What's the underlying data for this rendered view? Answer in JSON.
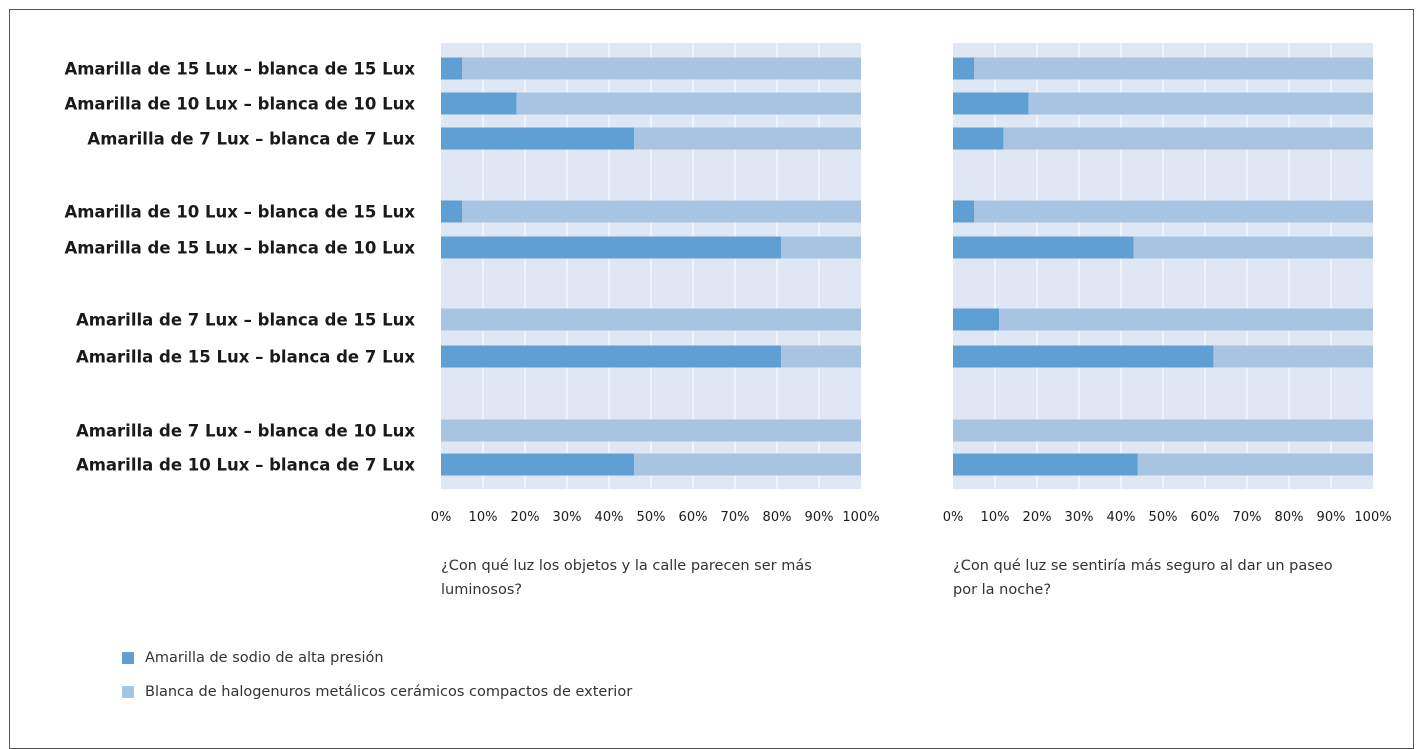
{
  "colors": {
    "yellow": "#5f9fd4",
    "white": "#a8c4e3",
    "plot_bg": "#dfe7f4",
    "grid": "#ffffff"
  },
  "chart_data": [
    {
      "type": "bar",
      "orientation": "horizontal-stacked-100",
      "title": "¿Con qué luz los objetos y la calle parecen ser más luminosos?",
      "categories": [
        "Amarilla de 15 Lux – blanca de 15 Lux",
        "Amarilla de 10 Lux – blanca de 10 Lux",
        "Amarilla de 7 Lux – blanca de 7 Lux",
        "Amarilla de 10 Lux – blanca de 15 Lux",
        "Amarilla de 15 Lux – blanca de 10 Lux",
        "Amarilla de 7 Lux – blanca de 15 Lux",
        "Amarilla de 15 Lux – blanca de 7 Lux",
        "Amarilla de 7 Lux – blanca de 10 Lux",
        "Amarilla de 10 Lux – blanca de 7 Lux"
      ],
      "series": [
        {
          "name": "Amarilla de sodio de alta presión",
          "values": [
            5,
            18,
            46,
            5,
            81,
            0,
            81,
            0,
            46
          ]
        },
        {
          "name": "Blanca de halogenuros metálicos cerámicos compactos de exterior",
          "values": [
            95,
            82,
            54,
            95,
            19,
            100,
            19,
            100,
            54
          ]
        }
      ],
      "xlim": [
        0,
        100
      ],
      "xticks": [
        "0%",
        "10%",
        "20%",
        "30%",
        "40%",
        "50%",
        "60%",
        "70%",
        "80%",
        "90%",
        "100%"
      ],
      "grid": true
    },
    {
      "type": "bar",
      "orientation": "horizontal-stacked-100",
      "title": "¿Con qué luz se sentiría más seguro al dar un paseo por la noche?",
      "categories": [
        "Amarilla de 15 Lux – blanca de 15 Lux",
        "Amarilla de 10 Lux – blanca de 10 Lux",
        "Amarilla de 7 Lux – blanca de 7 Lux",
        "Amarilla de 10 Lux – blanca de 15 Lux",
        "Amarilla de 15 Lux – blanca de 10 Lux",
        "Amarilla de 7 Lux – blanca de 15 Lux",
        "Amarilla de 15 Lux – blanca de 7 Lux",
        "Amarilla de 7 Lux – blanca de 10 Lux",
        "Amarilla de 10 Lux – blanca de 7 Lux"
      ],
      "series": [
        {
          "name": "Amarilla de sodio de alta presión",
          "values": [
            5,
            18,
            12,
            5,
            43,
            11,
            62,
            0,
            44
          ]
        },
        {
          "name": "Blanca de halogenuros metálicos cerámicos compactos de exterior",
          "values": [
            95,
            82,
            88,
            95,
            57,
            89,
            38,
            100,
            56
          ]
        }
      ],
      "xlim": [
        0,
        100
      ],
      "xticks": [
        "0%",
        "10%",
        "20%",
        "30%",
        "40%",
        "50%",
        "60%",
        "70%",
        "80%",
        "90%",
        "100%"
      ],
      "grid": true
    }
  ],
  "legend": {
    "position": "bottom-left",
    "items": [
      {
        "label": "Amarilla de sodio de alta presión",
        "color": "#5f9fd4"
      },
      {
        "label": "Blanca de halogenuros metálicos cerámicos compactos de exterior",
        "color": "#a8c4e3"
      }
    ]
  }
}
